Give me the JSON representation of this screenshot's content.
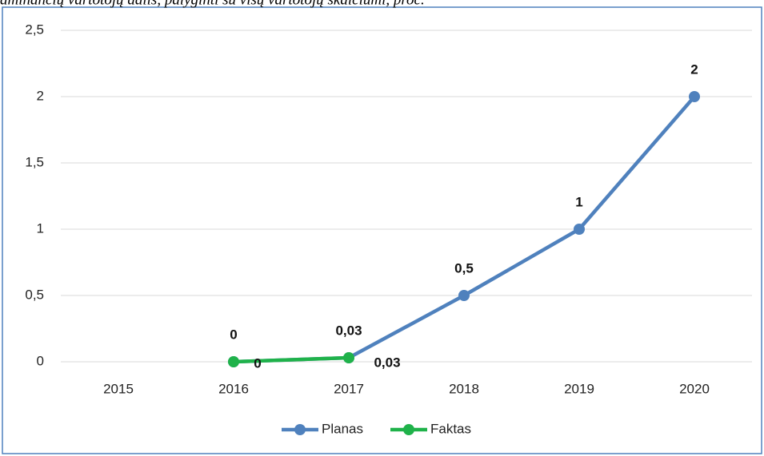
{
  "chart_data": {
    "type": "line",
    "title": "aminančių vartotojų dalis, palyginti su visų vartotojų skaičiumi, proc.",
    "categories": [
      "2015",
      "2016",
      "2017",
      "2018",
      "2019",
      "2020"
    ],
    "series": [
      {
        "name": "Planas",
        "color": "#4f81bd",
        "values": [
          null,
          0,
          0.03,
          0.5,
          1,
          2
        ],
        "value_labels": [
          null,
          "0",
          "0,03",
          "0,5",
          "1",
          "2"
        ]
      },
      {
        "name": "Faktas",
        "color": "#1fb24a",
        "values": [
          null,
          0,
          0.03,
          null,
          null,
          null
        ],
        "value_labels": [
          null,
          "0",
          "0,03",
          null,
          null,
          null
        ]
      }
    ],
    "ylim": [
      0,
      2.5
    ],
    "yticks": [
      0,
      {
        "value": 0.5,
        "label": "0,5"
      },
      1,
      {
        "value": 1.5,
        "label": "1,5"
      },
      2,
      {
        "value": 2.5,
        "label": "2,5"
      }
    ],
    "grid": true,
    "legend": "bottom"
  }
}
